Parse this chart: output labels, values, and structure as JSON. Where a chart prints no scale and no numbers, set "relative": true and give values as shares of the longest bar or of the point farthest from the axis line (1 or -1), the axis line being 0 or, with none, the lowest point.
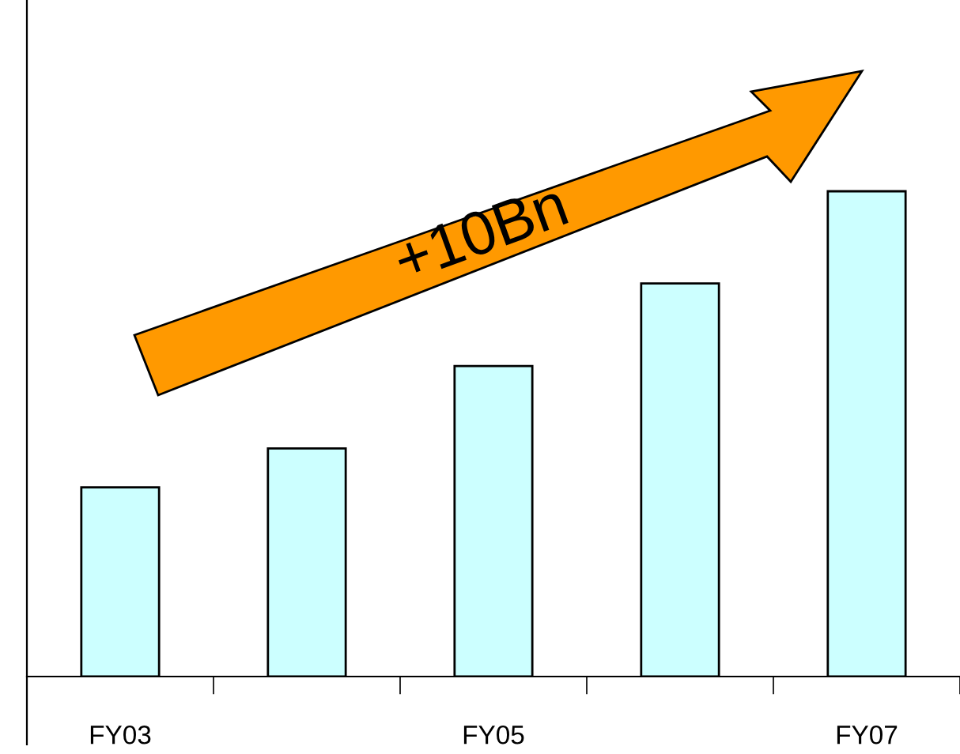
{
  "chart_data": {
    "type": "bar",
    "relative": true,
    "categories": [
      "FY03",
      null,
      "FY05",
      null,
      "FY07"
    ],
    "values": [
      0.39,
      0.47,
      0.64,
      0.81,
      1
    ],
    "color": "#ccffff",
    "annotations": [
      "+10Bn"
    ]
  }
}
